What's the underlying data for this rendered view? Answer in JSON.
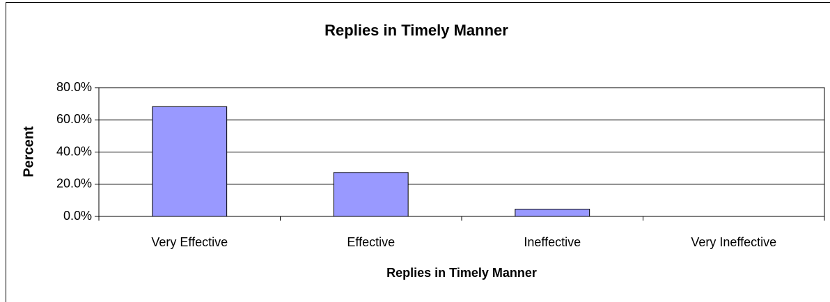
{
  "chart_data": {
    "type": "bar",
    "title": "Replies in Timely Manner",
    "x_label": "Replies in Timely Manner",
    "y_label": "Percent",
    "categories": [
      "Very Effective",
      "Effective",
      "Ineffective",
      "Very Ineffective"
    ],
    "values": [
      68.2,
      27.3,
      4.5,
      0
    ],
    "color": "#9999ff",
    "ylim": [
      0,
      80
    ],
    "yticks": [
      {
        "value": 0,
        "label": "0.0%"
      },
      {
        "value": 20,
        "label": "20.0%"
      },
      {
        "value": 40,
        "label": "40.0%"
      },
      {
        "value": 60,
        "label": "60.0%"
      },
      {
        "value": 80,
        "label": "80.0%"
      }
    ],
    "grid": true
  }
}
